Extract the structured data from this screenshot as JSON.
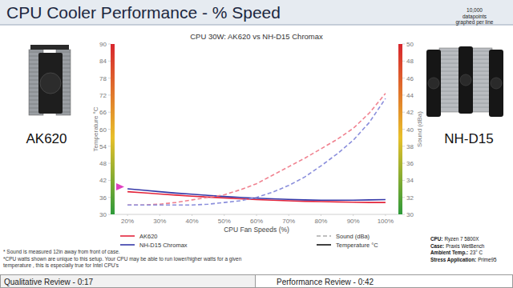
{
  "slide": {
    "title": "CPU Cooler Performance - % Speed",
    "left_product": "AK620",
    "right_product": "NH-D15",
    "datapoints_note": [
      "10,000",
      "datapoints",
      "graphed per line"
    ],
    "footnotes": [
      "* Sound is measured 12in away from front of case.",
      "*CPU watts shown are unique to this setup. Your CPU may be able to run lower/higher watts for a given",
      "temperature , this is especially true for Intel CPU's"
    ],
    "specs": [
      {
        "label": "CPU:",
        "value": "Ryzen 7 5800X"
      },
      {
        "label": "Case:",
        "value": "Praxis WetBench"
      },
      {
        "label": "Ambient Temp.:",
        "value": "23° C"
      },
      {
        "label": "Stress Application:",
        "value": "Prime95"
      }
    ],
    "nav": [
      "Qualitative Review - 0:17",
      "Performance Review - 0:42"
    ]
  },
  "chart_data": {
    "type": "line",
    "title": "CPU 30W: AK620 vs NH-D15 Chromax",
    "xlabel": "CPU Fan Speeds (%)",
    "ylabel": "Temperature °C",
    "y2label": "Sound (dBa)",
    "x": [
      20,
      25,
      30,
      35,
      40,
      45,
      50,
      55,
      60,
      65,
      70,
      75,
      80,
      85,
      90,
      95,
      100
    ],
    "xlim": [
      16,
      104
    ],
    "xticks": [
      {
        "value": 20,
        "label": "20%"
      },
      {
        "value": 30,
        "label": "30%"
      },
      {
        "value": 40,
        "label": "40%"
      },
      {
        "value": 50,
        "label": "50%"
      },
      {
        "value": 60,
        "label": "60%"
      },
      {
        "value": 70,
        "label": "70%"
      },
      {
        "value": 80,
        "label": "80%"
      },
      {
        "value": 90,
        "label": "90%"
      },
      {
        "value": 100,
        "label": "100%"
      }
    ],
    "ylim": [
      30,
      90
    ],
    "yticks": [
      30,
      36,
      42,
      48,
      54,
      60,
      66,
      72,
      78,
      84,
      90
    ],
    "y2lim": [
      30,
      50
    ],
    "y2ticks": [
      30,
      32,
      34,
      36,
      38,
      40,
      42,
      44,
      46,
      48,
      50
    ],
    "grid": false,
    "legend": "bottom",
    "series": [
      {
        "name": "AK620",
        "color": "#e3243b",
        "line_style": "solid",
        "values": [
          38.0,
          37.6,
          37.2,
          36.8,
          36.4,
          36.1,
          35.8,
          35.5,
          35.2,
          35.0,
          34.8,
          34.6,
          34.5,
          34.4,
          34.3,
          34.2,
          34.2
        ]
      },
      {
        "name": "NH-D15 Chromax",
        "color": "#3438a8",
        "line_style": "solid",
        "values": [
          39.0,
          38.5,
          38.0,
          37.5,
          37.1,
          36.7,
          36.3,
          36.0,
          35.7,
          35.5,
          35.3,
          35.1,
          35.0,
          35.0,
          35.0,
          35.1,
          35.2
        ]
      },
      {
        "color": "#f0818f",
        "line_style": "dashed",
        "axis": "y2",
        "values": [
          31.1,
          31.1,
          31.2,
          31.4,
          31.7,
          32.0,
          32.3,
          32.9,
          33.6,
          34.6,
          35.6,
          36.6,
          37.7,
          38.8,
          40.1,
          41.9,
          44.2
        ]
      },
      {
        "color": "#8b8fdc",
        "line_style": "dashed",
        "axis": "y2",
        "values": [
          31.1,
          31.1,
          31.1,
          31.1,
          31.1,
          31.2,
          31.4,
          31.6,
          32.0,
          32.6,
          33.4,
          34.4,
          35.7,
          37.1,
          38.7,
          40.8,
          43.6
        ]
      }
    ],
    "legend_styles": [
      {
        "label": "Sound (dBa)",
        "line_style": "dashed",
        "color": "#aaaaaa"
      },
      {
        "label": "Temperature °C",
        "line_style": "solid",
        "color": "#111111"
      }
    ]
  }
}
